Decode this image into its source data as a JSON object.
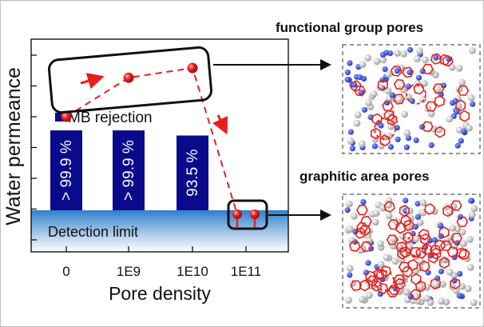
{
  "chart_data": {
    "type": "bar",
    "xlabel": "Pore density",
    "ylabel": "Water permeance",
    "categories": [
      "0",
      "1E9",
      "1E10",
      "1E11"
    ],
    "water_permeance_relative": [
      0.22,
      0.3,
      0.32,
      0.02
    ],
    "series": [
      {
        "name": "MB rejection",
        "values": [
          99.9,
          99.9,
          93.5,
          null
        ],
        "labels": [
          "> 99.9 %",
          "> 99.9 %",
          "93.5 %",
          ""
        ]
      }
    ],
    "detection_limit_label": "Detection limit",
    "colors": {
      "bars": "#0a0a8c",
      "markers": "#e8201c",
      "detection_band": "#4a90d0"
    }
  },
  "panels": {
    "top_title": "functional group pores",
    "bottom_title": "graphitic area pores"
  }
}
